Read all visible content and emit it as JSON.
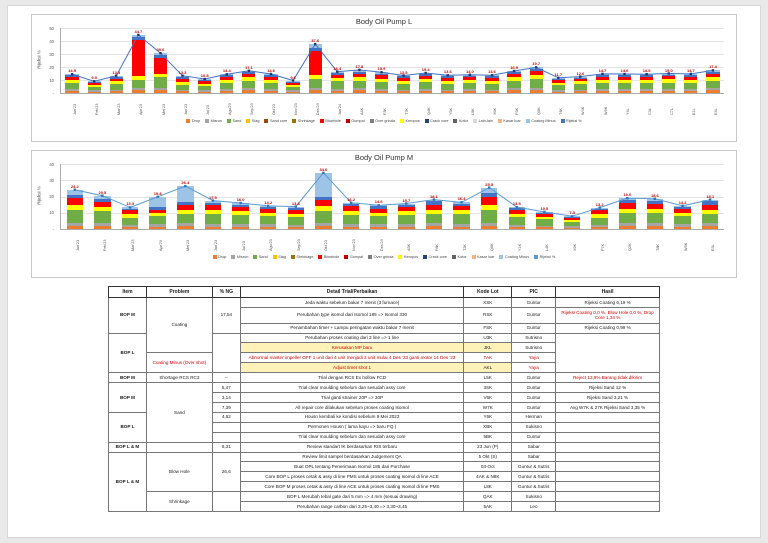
{
  "page": {
    "background": "#ffffff"
  },
  "chart_data": [
    {
      "type": "bar",
      "subtype": "stacked-bar-with-line",
      "title": "Body Oil Pump L",
      "ylabel": "Rijeksi %",
      "ylim": [
        0,
        50
      ],
      "ytick": 10,
      "grid": true,
      "legend_position": "bottom",
      "categories": [
        "Jan'23",
        "Feb'23",
        "Mar'23",
        "Apr'23",
        "Mei'23",
        "Jun'23",
        "Jul'23",
        "Agu'23",
        "Sep'23",
        "Okt'23",
        "Nov'23",
        "Des'23",
        "Jan'24",
        "A4K",
        "F3K",
        "T7K",
        "Q4K",
        "Y5K",
        "L9K",
        "X6K",
        "P3K",
        "Q9K",
        "T4K",
        "W4K",
        "W9K",
        "Y4L",
        "C3L",
        "C7L",
        "E1L",
        "E4L"
      ],
      "stack_series": [
        {
          "name": "Drop",
          "color": "#ED7D31"
        },
        {
          "name": "Misrun",
          "color": "#A5A5A5"
        },
        {
          "name": "Sand",
          "color": "#70AD47"
        },
        {
          "name": "Keropos",
          "color": "#FFFF00"
        },
        {
          "name": "Blowhole",
          "color": "#FF0000"
        },
        {
          "name": "Crack core",
          "color": "#4472C4"
        },
        {
          "name": "Coating Minus",
          "color": "#9DC3E6"
        }
      ],
      "bars": [
        [
          1.5,
          1.5,
          5,
          2,
          2,
          1.5,
          1
        ],
        [
          1,
          1,
          3,
          1.5,
          1,
          1,
          0.5
        ],
        [
          1.5,
          1,
          4.5,
          2,
          2,
          1.5,
          0.8
        ],
        [
          2,
          2,
          6,
          3,
          28,
          2,
          1.7
        ],
        [
          2,
          2,
          8,
          3,
          12,
          2,
          1.6
        ],
        [
          1.5,
          1,
          4,
          2,
          2.5,
          1.5,
          0.8
        ],
        [
          1,
          1,
          3.5,
          1.5,
          2,
          1,
          0.8
        ],
        [
          1.5,
          1.5,
          5,
          2,
          2,
          1.5,
          0.9
        ],
        [
          2,
          1.5,
          6,
          2.5,
          2.5,
          1.5,
          1.1
        ],
        [
          1.5,
          1.5,
          5,
          2,
          2.5,
          1.5,
          0.6
        ],
        [
          1,
          1,
          3,
          1.5,
          1.5,
          1,
          0.6
        ],
        [
          2,
          2,
          7,
          3,
          18,
          3,
          2.6
        ],
        [
          1.5,
          1.5,
          6,
          2.5,
          2.5,
          1.5,
          0.9
        ],
        [
          2,
          1.5,
          6,
          2.5,
          3,
          1.5,
          1.3
        ],
        [
          1.5,
          1.5,
          5.5,
          2.5,
          2.5,
          1.5,
          0.9
        ],
        [
          1.5,
          1,
          4.5,
          2,
          2.5,
          1.5,
          0.5
        ],
        [
          1.5,
          1.5,
          5.5,
          2,
          2.5,
          1.5,
          0.9
        ],
        [
          1.5,
          1,
          4.5,
          2,
          2.5,
          1.5,
          0.6
        ],
        [
          1.5,
          1.5,
          5,
          2,
          2,
          1.5,
          0.5
        ],
        [
          1.5,
          1,
          4.5,
          2,
          2.5,
          1.5,
          0.6
        ],
        [
          2,
          1.5,
          6,
          2.5,
          2.5,
          1.5,
          0.9
        ],
        [
          2,
          2,
          7,
          3,
          3,
          1.5,
          1.2
        ],
        [
          1,
          1,
          4,
          2,
          2,
          1,
          0.7
        ],
        [
          1.5,
          1,
          4.5,
          2,
          2,
          1,
          0.6
        ],
        [
          1.5,
          1.5,
          5,
          2,
          2.5,
          1.5,
          0.7
        ],
        [
          1.5,
          1.5,
          5,
          2,
          2.5,
          1.5,
          0.6
        ],
        [
          1.5,
          1.5,
          5,
          2,
          2,
          1.5,
          1
        ],
        [
          1.5,
          1.5,
          5,
          2.5,
          2.5,
          1.5,
          0.5
        ],
        [
          1.5,
          1.5,
          5,
          2,
          2.5,
          1.5,
          0.7
        ],
        [
          2,
          1.5,
          6,
          2.5,
          3,
          1.5,
          0.9
        ]
      ],
      "line": {
        "name": "Rijeksi %",
        "color": "#4472C4",
        "marker": "#1F3864",
        "label_color": "#C00000",
        "values": [
          14.5,
          9.0,
          13.3,
          44.7,
          30.6,
          13.3,
          10.8,
          14.4,
          17.1,
          14.6,
          9.6,
          37.6,
          16.4,
          17.8,
          15.9,
          13.5,
          15.4,
          13.6,
          14.0,
          13.6,
          16.9,
          19.7,
          11.7,
          12.6,
          14.7,
          14.6,
          14.5,
          15.0,
          14.7,
          17.4
        ]
      },
      "legend": [
        {
          "label": "Drop",
          "color": "#ED7D31"
        },
        {
          "label": "Misrun",
          "color": "#A5A5A5"
        },
        {
          "label": "Sand",
          "color": "#70AD47"
        },
        {
          "label": "Slag",
          "color": "#FFC000"
        },
        {
          "label": "Sand core",
          "color": "#9E480E"
        },
        {
          "label": "Shrinkage",
          "color": "#997300"
        },
        {
          "label": "Blowhole",
          "color": "#FF0000"
        },
        {
          "label": "Gompal",
          "color": "#C00000"
        },
        {
          "label": "Over grinda",
          "color": "#7F7F7F"
        },
        {
          "label": "Keropos",
          "color": "#FFFF00"
        },
        {
          "label": "Crack core",
          "color": "#264478"
        },
        {
          "label": "Kotor",
          "color": "#636363"
        },
        {
          "label": "Lain-lain",
          "color": "#D9D9D9"
        },
        {
          "label": "Kasar luar",
          "color": "#F4B183"
        },
        {
          "label": "Coating Minus",
          "color": "#9DC3E6"
        },
        {
          "label": "Rijeksi %",
          "color": "#4472C4"
        }
      ]
    },
    {
      "type": "bar",
      "subtype": "stacked-bar-with-line",
      "title": "Body Oil Pump M",
      "ylabel": "Rijeksi %",
      "ylim": [
        0,
        40
      ],
      "ytick": 10,
      "grid": true,
      "legend_position": "bottom",
      "categories": [
        "Jan'23",
        "Feb'23",
        "Mar'23",
        "Apr'23",
        "Mei'23",
        "Jun'23",
        "Jul'23",
        "Agu'23",
        "Sep'23",
        "Okt'23",
        "Nov'23",
        "Des'23",
        "A5K",
        "F8K",
        "T2K",
        "Q6K",
        "Y1K",
        "L4K",
        "X9K",
        "P7K",
        "Q2K",
        "T8K",
        "W5K",
        "E3L"
      ],
      "stack_series": [
        {
          "name": "Drop",
          "color": "#ED7D31"
        },
        {
          "name": "Misrun",
          "color": "#A5A5A5"
        },
        {
          "name": "Sand",
          "color": "#70AD47"
        },
        {
          "name": "Keropos",
          "color": "#FFFF00"
        },
        {
          "name": "Blowhole",
          "color": "#FF0000"
        },
        {
          "name": "Crack core",
          "color": "#4472C4"
        },
        {
          "name": "Coating Minus",
          "color": "#9DC3E6"
        }
      ],
      "bars": [
        [
          2,
          2,
          8,
          3,
          4,
          2,
          3.2
        ],
        [
          2,
          2,
          7,
          2.5,
          3,
          2,
          2
        ],
        [
          1.5,
          1,
          4.5,
          2,
          2.5,
          1,
          0.8
        ],
        [
          1.5,
          1.5,
          5,
          2,
          2,
          1.5,
          6.3
        ],
        [
          2,
          1.5,
          6,
          2.5,
          2.5,
          2,
          9.9
        ],
        [
          1.5,
          1.5,
          6,
          2.5,
          3,
          1.5,
          1.5
        ],
        [
          1.5,
          1.5,
          5.5,
          2.5,
          2.5,
          1.5,
          1
        ],
        [
          1.5,
          1.5,
          5,
          2,
          2.5,
          1.2,
          0.5
        ],
        [
          1.5,
          1,
          5,
          2,
          2.5,
          1.3,
          0.5
        ],
        [
          2,
          2,
          7,
          3,
          4,
          2,
          14.6
        ],
        [
          1.5,
          1.5,
          5.5,
          2.5,
          3,
          1.5,
          0.7
        ],
        [
          1.5,
          1.5,
          5,
          2,
          2.5,
          1.5,
          0.6
        ],
        [
          1.5,
          1.5,
          5.5,
          2.5,
          2.5,
          1.5,
          0.7
        ],
        [
          2,
          1.5,
          6,
          2.5,
          3,
          2,
          1.1
        ],
        [
          1.5,
          1.5,
          6,
          2.5,
          2.5,
          1.5,
          0.9
        ],
        [
          2,
          2,
          8,
          3,
          5,
          2,
          3.5
        ],
        [
          1.5,
          1,
          5,
          2,
          2.5,
          1,
          0.5
        ],
        [
          1,
          1,
          4,
          1.5,
          2,
          0.5,
          0.5
        ],
        [
          0.8,
          0.8,
          2.5,
          1.2,
          1.5,
          0.5,
          0.5
        ],
        [
          1.5,
          1,
          4.5,
          2,
          2.5,
          1.2,
          0.5
        ],
        [
          2,
          1.5,
          6.5,
          2.5,
          3.5,
          2,
          1
        ],
        [
          2,
          1.5,
          6.5,
          2.5,
          3,
          2,
          1.1
        ],
        [
          1.5,
          1.5,
          5,
          2,
          2.5,
          1.3,
          0.5
        ],
        [
          2,
          1.5,
          6,
          2.5,
          3,
          2,
          1.1
        ]
      ],
      "line": {
        "name": "Rijeksi %",
        "color": "#5B9BD5",
        "marker": "#2E75B6",
        "label_color": "#C00000",
        "values": [
          24.2,
          20.5,
          13.3,
          19.8,
          26.4,
          17.5,
          16.0,
          14.2,
          13.8,
          34.6,
          16.2,
          14.6,
          15.7,
          18.1,
          16.4,
          25.5,
          13.5,
          10.5,
          7.8,
          13.2,
          19.0,
          18.6,
          14.3,
          18.1
        ]
      },
      "legend": [
        {
          "label": "Drop",
          "color": "#ED7D31"
        },
        {
          "label": "Misrun",
          "color": "#A5A5A5"
        },
        {
          "label": "Sand",
          "color": "#70AD47"
        },
        {
          "label": "Slag",
          "color": "#FFC000"
        },
        {
          "label": "Shrinkage",
          "color": "#997300"
        },
        {
          "label": "Blowhole",
          "color": "#FF0000"
        },
        {
          "label": "Gompal",
          "color": "#C00000"
        },
        {
          "label": "Over grinda",
          "color": "#7F7F7F"
        },
        {
          "label": "Keropos",
          "color": "#FFFF00"
        },
        {
          "label": "Crack core",
          "color": "#264478"
        },
        {
          "label": "Kotor",
          "color": "#636363"
        },
        {
          "label": "Kasar luar",
          "color": "#F4B183"
        },
        {
          "label": "Coating Minus",
          "color": "#9DC3E6"
        },
        {
          "label": "Rijeksi %",
          "color": "#5B9BD5"
        }
      ]
    }
  ],
  "table": {
    "headers": [
      "Item",
      "Problem",
      "% NG",
      "Detail Trial/Perbaikan",
      "Kode Lot",
      "PIC",
      "Hasil"
    ],
    "rows": [
      [
        {
          "t": "BOP M",
          "rs": 3,
          "b": 1
        },
        {
          "t": "Coating",
          "rs": 5
        },
        {
          "t": "17,54",
          "rs": 3
        },
        {
          "t": "Jeda waktu sebelum bakar 7 menit (3 furnace)"
        },
        {
          "t": "XSK"
        },
        {
          "t": "Guntur"
        },
        {
          "t": "Rijeksi Coating 6,19 %"
        }
      ],
      [
        {
          "t": "Perubahan type isomol dari Isomol 185 => Isomol 330"
        },
        {
          "t": "RSK"
        },
        {
          "t": "Guntur"
        },
        {
          "t": "Rijeksi Coating 0,0 %, Blow Hole 0,0 %, Drop Core 1,34 %",
          "red": 1
        }
      ],
      [
        {
          "t": "Penambahan timer + Lampu peringatan waktu bakar 7 menit"
        },
        {
          "t": "FSK"
        },
        {
          "t": "Guntur"
        },
        {
          "t": "Rijeksi Coating 0,99 %"
        }
      ],
      [
        {
          "t": "BOP L",
          "rs": 4,
          "b": 1
        },
        {
          "t": "",
          "rs": 4
        },
        {
          "t": "Perubahan proses coating dari 3 line => 1 line"
        },
        {
          "t": "U3K"
        },
        {
          "t": "Sutrisno"
        },
        {
          "t": "",
          "rs": 4
        }
      ],
      [
        {
          "t": "Kerusakan MP baru",
          "red": 1,
          "yb": 1
        },
        {
          "t": "JKL",
          "yb": 1
        },
        {
          "t": "Sutrisno"
        }
      ],
      [
        {
          "t": "Coating Minus (Over shot)",
          "rs": 2,
          "red": 1
        },
        {
          "t": "Abnormal master impeller OFF 1 unit dari 4 unit menjadi 3 unit mulai 4 Des '23 ganti motor 14 Des '23",
          "red": 1
        },
        {
          "t": "TAK",
          "red": 1
        },
        {
          "t": "Yaya",
          "red": 1
        }
      ],
      [
        {
          "t": "Adjust timer shot 1",
          "red": 1,
          "yb": 1
        },
        {
          "t": "AKL",
          "yb": 1
        },
        {
          "t": "Yaya",
          "red": 1
        }
      ],
      [
        {
          "t": "BOP M",
          "b": 1
        },
        {
          "t": "Shortage RCS RC3"
        },
        {
          "t": "--"
        },
        {
          "t": "Trial dengan RCS Ex hollow FCD"
        },
        {
          "t": "L5K"
        },
        {
          "t": "Guntur"
        },
        {
          "t": "Reject 13,9% Barang tidak dikirim",
          "red": 1
        }
      ],
      [
        {
          "t": "BOP M",
          "rs": 3,
          "b": 1
        },
        {
          "t": "Sand",
          "rs": 6
        },
        {
          "t": "5,47"
        },
        {
          "t": "Trial clear moulding sebelum dan sesudah assy core"
        },
        {
          "t": "3SK"
        },
        {
          "t": "Guntur"
        },
        {
          "t": "Rijeksi Sand 12 %"
        }
      ],
      [
        {
          "t": "3,14"
        },
        {
          "t": "Trial ganti strainer 20P => 30P"
        },
        {
          "t": "V6K"
        },
        {
          "t": "Guntur"
        },
        {
          "t": "Rijeksi Sand 3,21 %"
        }
      ],
      [
        {
          "t": "7,39"
        },
        {
          "t": "All repair core dilakukan sebelum proses coating Isomol"
        },
        {
          "t": "W7K"
        },
        {
          "t": "Guntur"
        },
        {
          "t": "Avg W7K & 27K Rijeksi Sand 3,35 %"
        }
      ],
      [
        {
          "t": "BOP L",
          "rs": 3,
          "b": 1
        },
        {
          "t": "4,62"
        },
        {
          "t": "Housn kembali ke kondisi sebelum 9 Mei 2023"
        },
        {
          "t": "Y6K"
        },
        {
          "t": "Herman"
        },
        {
          "t": ""
        }
      ],
      [
        {
          "t": ""
        },
        {
          "t": "Permonen Housn ( lama kayu => baru FQ )"
        },
        {
          "t": "XBK"
        },
        {
          "t": "Sukisno"
        },
        {
          "t": ""
        }
      ],
      [
        {
          "t": ""
        },
        {
          "t": "Trial clear moulding sebelum dan sesudah assy core"
        },
        {
          "t": "5BK"
        },
        {
          "t": "Guntur"
        },
        {
          "t": ""
        }
      ],
      [
        {
          "t": "BOP L & M",
          "b": 1
        },
        {
          "t": ""
        },
        {
          "t": "6,31"
        },
        {
          "t": "Review standart IK berdasarkan RIS terbaru"
        },
        {
          "t": "23 Jun (P)"
        },
        {
          "t": "Sabar"
        },
        {
          "t": ""
        }
      ],
      [
        {
          "t": "BOP L & M",
          "rs": 6,
          "b": 1
        },
        {
          "t": "Blow Hole",
          "rs": 4
        },
        {
          "t": "26,6",
          "rs": 4
        },
        {
          "t": "Review limit sampel berdasarkan Judgement QA"
        },
        {
          "t": "5 Okt (S)"
        },
        {
          "t": "Sabar"
        },
        {
          "t": ""
        }
      ],
      [
        {
          "t": "Buat OPL tentang Penerimaan Isomol 185 dari Purchase"
        },
        {
          "t": "03-Oct"
        },
        {
          "t": "Guntur & Sutris"
        },
        {
          "t": ""
        }
      ],
      [
        {
          "t": "Core BOP L proses cetak & assy di line PMS untuk proses coating Isomol di line ACE"
        },
        {
          "t": "4AK & N8K"
        },
        {
          "t": "Guntur & Sutris"
        },
        {
          "t": ""
        }
      ],
      [
        {
          "t": "Core BOP M proses cetak & assy di line ACE untuk proses coating Isomol di line PMS"
        },
        {
          "t": "L8K"
        },
        {
          "t": "Guntur & Sutris"
        },
        {
          "t": ""
        }
      ],
      [
        {
          "t": "Shrinkage",
          "rs": 2
        },
        {
          "t": "",
          "rs": 2
        },
        {
          "t": "BOP L Merubah tebal gate dari 5 mm => 4 mm (sesuai drawing)"
        },
        {
          "t": "QAK"
        },
        {
          "t": "Sukisno"
        },
        {
          "t": ""
        }
      ],
      [
        {
          "t": "Perubahan range carbon dari 3,25~3,40 => 3,30~3,45"
        },
        {
          "t": "5AK"
        },
        {
          "t": "Leo"
        },
        {
          "t": ""
        }
      ]
    ]
  }
}
